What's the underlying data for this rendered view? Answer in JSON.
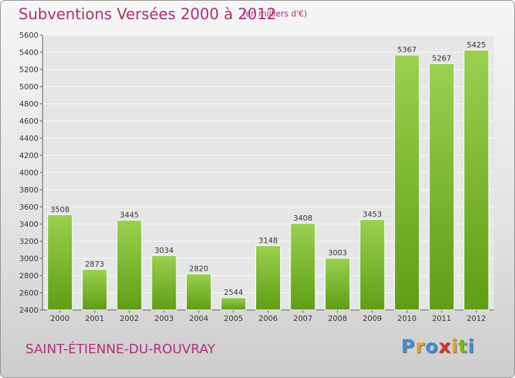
{
  "title": "Subventions Versées 2000 à 2012",
  "subtitle": "(en milliers d'€)",
  "commune": "SAINT-ÉTIENNE-DU-ROUVRAY",
  "logo": {
    "letters": [
      "P",
      "r",
      "o",
      "x",
      "i",
      "t",
      "i"
    ],
    "colors": [
      "#3d8fd6",
      "#e8a21b",
      "#3d8fd6",
      "#d6312c",
      "#e8a21b",
      "#7ab51d",
      "#3d8fd6"
    ]
  },
  "colors": {
    "bar_top": "#9ad14f",
    "bar_bottom": "#5e9e14",
    "accent": "#b03070"
  },
  "chart_data": {
    "type": "bar",
    "categories": [
      "2000",
      "2001",
      "2002",
      "2003",
      "2004",
      "2005",
      "2006",
      "2007",
      "2008",
      "2009",
      "2010",
      "2011",
      "2012"
    ],
    "values": [
      3508,
      2873,
      3445,
      3034,
      2820,
      2544,
      3148,
      3408,
      3003,
      3453,
      5367,
      5267,
      5425
    ],
    "ylim": [
      2400,
      5600
    ],
    "yticks": [
      2400,
      2600,
      2800,
      3000,
      3200,
      3400,
      3600,
      3800,
      4000,
      4200,
      4400,
      4600,
      4800,
      5000,
      5200,
      5400,
      5600
    ],
    "grid": true,
    "xlabel": "",
    "ylabel": ""
  }
}
